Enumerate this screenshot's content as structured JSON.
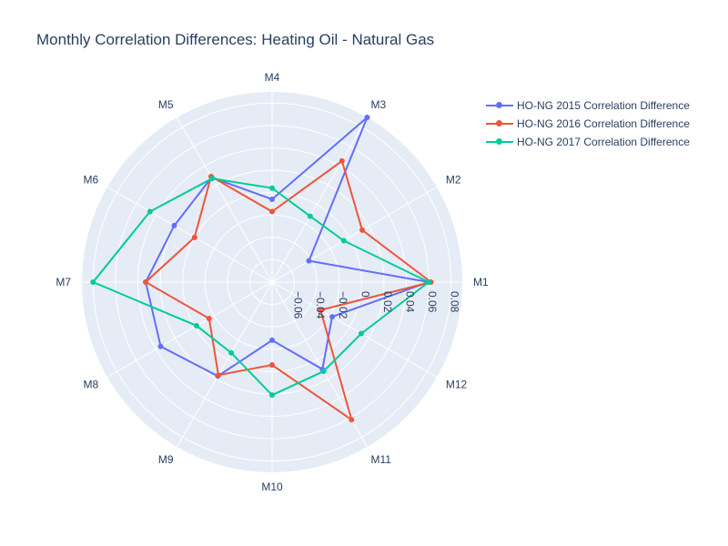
{
  "chart_data": {
    "type": "radar",
    "title": "Monthly Correlation Differences: Heating Oil - Natural Gas",
    "categories": [
      "M1",
      "M2",
      "M3",
      "M4",
      "M5",
      "M6",
      "M7",
      "M8",
      "M9",
      "M10",
      "M11",
      "M12"
    ],
    "radial_range": [
      -0.08,
      0.09
    ],
    "radial_ticks": [
      -0.06,
      -0.04,
      -0.02,
      0,
      0.02,
      0.04,
      0.06,
      0.08
    ],
    "radial_tick_labels": [
      "−0.06",
      "−0.04",
      "−0.02",
      "0",
      "0.02",
      "0.04",
      "0.06",
      "0.08"
    ],
    "legend_position": "top-right",
    "series": [
      {
        "name": "HO-NG 2015 Correlation Difference",
        "color": "#636efa",
        "values": [
          0.06,
          -0.042,
          0.09,
          -0.006,
          0.028,
          0.021,
          0.033,
          0.035,
          0.017,
          -0.028,
          0.01,
          -0.018
        ]
      },
      {
        "name": "HO-NG 2016 Correlation Difference",
        "color": "#EF553B",
        "values": [
          0.062,
          0.013,
          0.045,
          -0.017,
          0.029,
          0.0,
          0.033,
          -0.015,
          0.016,
          -0.006,
          0.062,
          -0.03
        ]
      },
      {
        "name": "HO-NG 2017 Correlation Difference",
        "color": "#00cc96",
        "values": [
          0.06,
          -0.006,
          -0.012,
          0.004,
          0.027,
          0.046,
          0.08,
          -0.002,
          -0.007,
          0.021,
          0.012,
          0.012
        ]
      }
    ]
  }
}
